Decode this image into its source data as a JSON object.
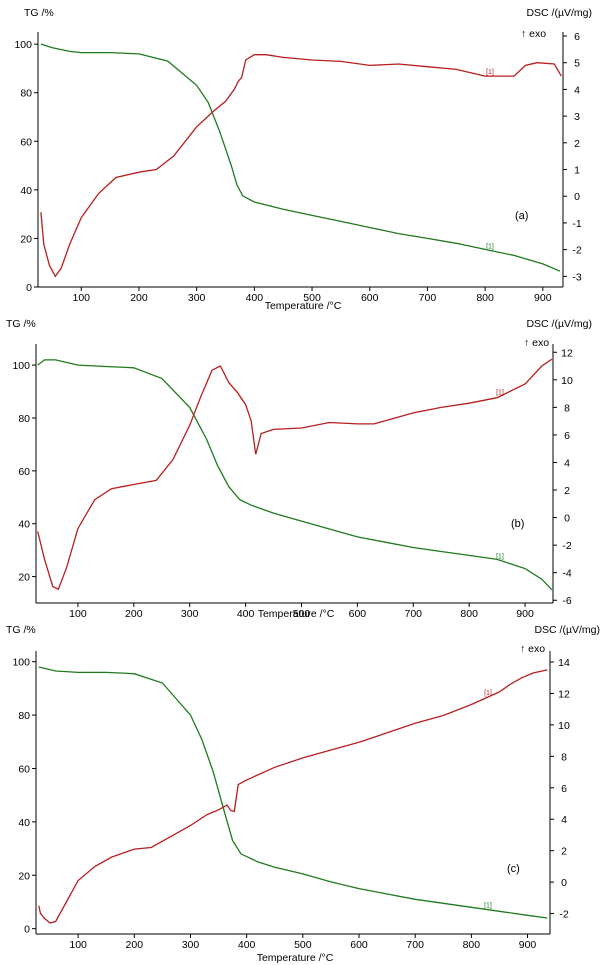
{
  "colors": {
    "tg": "#1f7a1f",
    "dsc": "#b81e1e",
    "axis": "#000000"
  },
  "chart_data": [
    {
      "type": "line",
      "panel_label": "(a)",
      "left_axis_title": "TG /%",
      "right_axis_title": "DSC /(µV/mg)",
      "exo_label": "↑ exo",
      "xlabel": "Temperature /°C",
      "curve_marker": "[1]",
      "xlim": [
        25,
        935
      ],
      "ylim_left": [
        0,
        105
      ],
      "ylim_right": [
        -3.4,
        6.15
      ],
      "x_ticks": [
        100,
        200,
        300,
        400,
        500,
        600,
        700,
        800,
        900
      ],
      "y_left_ticks": [
        0,
        20,
        40,
        60,
        80,
        100
      ],
      "y_right_ticks": [
        -3,
        -2,
        -1,
        0,
        1,
        2,
        3,
        4,
        5,
        6
      ],
      "series": [
        {
          "name": "TG",
          "axis": "left",
          "x": [
            30,
            50,
            80,
            100,
            150,
            200,
            250,
            300,
            320,
            340,
            360,
            370,
            380,
            400,
            450,
            500,
            550,
            600,
            650,
            700,
            750,
            800,
            850,
            900,
            930
          ],
          "y": [
            100,
            98.5,
            97,
            96.5,
            96.5,
            96,
            93,
            83,
            76,
            64,
            50,
            42,
            37.5,
            35,
            32,
            29.5,
            27,
            24.5,
            22,
            20,
            18,
            15.5,
            13,
            9.5,
            6.5
          ]
        },
        {
          "name": "DSC",
          "axis": "right",
          "x": [
            30,
            35,
            45,
            55,
            65,
            80,
            100,
            130,
            160,
            200,
            230,
            260,
            300,
            330,
            350,
            365,
            372,
            378,
            385,
            400,
            420,
            450,
            500,
            550,
            600,
            650,
            700,
            750,
            800,
            850,
            870,
            890,
            920,
            932
          ],
          "y": [
            -0.6,
            -1.8,
            -2.6,
            -3.0,
            -2.7,
            -1.8,
            -0.8,
            0.1,
            0.7,
            0.9,
            1.0,
            1.5,
            2.6,
            3.2,
            3.55,
            4.0,
            4.3,
            4.45,
            5.1,
            5.3,
            5.3,
            5.2,
            5.1,
            5.05,
            4.9,
            4.95,
            4.85,
            4.75,
            4.5,
            4.5,
            4.9,
            5.0,
            4.95,
            4.5
          ]
        }
      ]
    },
    {
      "type": "line",
      "panel_label": "(b)",
      "left_axis_title": "TG /%",
      "right_axis_title": "DSC /(µV/mg)",
      "exo_label": "↑ exo",
      "xlabel": "Temperature /°C",
      "curve_marker": "[1]",
      "xlim": [
        25,
        950
      ],
      "ylim_left": [
        10,
        108
      ],
      "ylim_right": [
        -6.2,
        12.6
      ],
      "x_ticks": [
        100,
        200,
        300,
        400,
        500,
        600,
        700,
        800,
        900
      ],
      "y_left_ticks": [
        20,
        40,
        60,
        80,
        100
      ],
      "y_right_ticks": [
        -6,
        -4,
        -2,
        0,
        2,
        4,
        6,
        8,
        10,
        12
      ],
      "series": [
        {
          "name": "TG",
          "axis": "left",
          "x": [
            28,
            40,
            60,
            100,
            150,
            200,
            250,
            300,
            330,
            350,
            370,
            390,
            410,
            450,
            500,
            550,
            600,
            650,
            700,
            750,
            800,
            850,
            900,
            930,
            948
          ],
          "y": [
            100,
            102,
            102,
            100,
            99.5,
            99,
            95,
            84,
            72,
            62,
            54,
            49,
            47,
            44,
            41,
            38,
            35,
            33,
            31,
            29.5,
            28,
            26.5,
            23,
            19,
            15
          ]
        },
        {
          "name": "DSC",
          "axis": "right",
          "x": [
            28,
            40,
            55,
            65,
            80,
            100,
            130,
            160,
            200,
            240,
            270,
            300,
            320,
            340,
            355,
            370,
            385,
            400,
            410,
            418,
            428,
            450,
            500,
            550,
            600,
            630,
            700,
            750,
            800,
            850,
            900,
            930,
            948
          ],
          "y": [
            -1.0,
            -3.0,
            -5.0,
            -5.2,
            -3.6,
            -0.8,
            1.3,
            2.1,
            2.4,
            2.7,
            4.2,
            6.7,
            8.8,
            10.7,
            11.0,
            9.8,
            9.1,
            8.2,
            7.0,
            4.6,
            6.1,
            6.4,
            6.5,
            6.9,
            6.8,
            6.8,
            7.6,
            8.0,
            8.3,
            8.7,
            9.7,
            11.0,
            11.5
          ]
        }
      ]
    },
    {
      "type": "line",
      "panel_label": "(c)",
      "left_axis_title": "TG /%",
      "right_axis_title": "DSC /(µV/mg)",
      "exo_label": "↑ exo",
      "xlabel": "Temperature /°C",
      "curve_marker": "[1]",
      "xlim": [
        25,
        940
      ],
      "ylim_left": [
        -2,
        104
      ],
      "ylim_right": [
        -3.3,
        14.7
      ],
      "x_ticks": [
        100,
        200,
        300,
        400,
        500,
        600,
        700,
        800,
        900
      ],
      "y_left_ticks": [
        0,
        20,
        40,
        60,
        80,
        100
      ],
      "y_right_ticks": [
        -2,
        0,
        2,
        4,
        6,
        8,
        10,
        12,
        14
      ],
      "series": [
        {
          "name": "TG",
          "axis": "left",
          "x": [
            30,
            60,
            100,
            150,
            200,
            250,
            300,
            320,
            340,
            360,
            375,
            390,
            420,
            450,
            500,
            550,
            600,
            650,
            700,
            750,
            800,
            850,
            900,
            935
          ],
          "y": [
            98,
            96.5,
            96,
            96,
            95.5,
            92,
            80,
            71,
            59,
            44,
            33,
            28,
            25,
            23,
            20.5,
            17.5,
            15,
            13,
            11,
            9.5,
            8,
            6.5,
            5,
            4
          ]
        },
        {
          "name": "DSC",
          "axis": "right",
          "x": [
            30,
            33,
            40,
            50,
            60,
            80,
            100,
            130,
            160,
            200,
            230,
            260,
            300,
            330,
            350,
            365,
            372,
            378,
            385,
            400,
            450,
            500,
            550,
            600,
            650,
            700,
            750,
            800,
            850,
            870,
            890,
            910,
            935
          ],
          "y": [
            -1.5,
            -2.0,
            -2.3,
            -2.6,
            -2.5,
            -1.2,
            0.1,
            1.0,
            1.6,
            2.1,
            2.2,
            2.8,
            3.6,
            4.3,
            4.6,
            4.9,
            4.55,
            4.5,
            6.2,
            6.5,
            7.3,
            7.9,
            8.4,
            8.9,
            9.5,
            10.1,
            10.6,
            11.3,
            12.1,
            12.6,
            13.0,
            13.3,
            13.5
          ]
        }
      ]
    }
  ]
}
